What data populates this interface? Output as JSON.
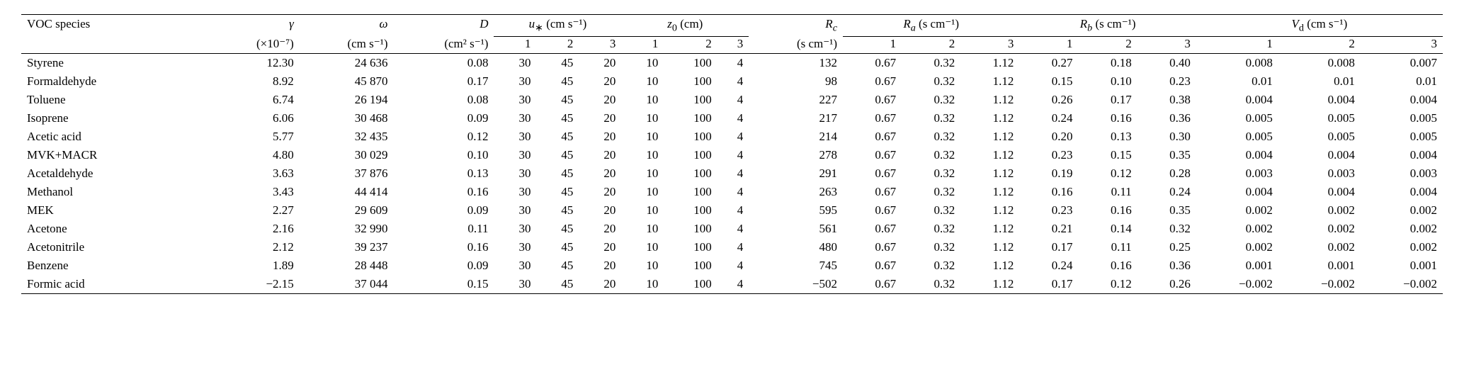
{
  "table": {
    "type": "table",
    "background_color": "#ffffff",
    "text_color": "#000000",
    "rule_color": "#000000",
    "font_family": "Times New Roman",
    "font_size_pt": 17,
    "header": {
      "voc_species": "VOC species",
      "gamma": "γ",
      "gamma_unit": "(×10⁻⁷)",
      "omega": "ω",
      "omega_unit": "(cm s⁻¹)",
      "D": "D",
      "D_unit": "(cm² s⁻¹)",
      "u_star": "u∗ (cm s⁻¹)",
      "z0": "z₀ (cm)",
      "Rc": "R_c",
      "Rc_unit": "(s cm⁻¹)",
      "Ra": "Rₐ (s cm⁻¹)",
      "Rb": "R_b (s cm⁻¹)",
      "Vd": "V_d (cm s⁻¹)",
      "sub1": "1",
      "sub2": "2",
      "sub3": "3"
    },
    "rows": [
      {
        "species": "Styrene",
        "gamma": "12.30",
        "omega": "24 636",
        "D": "0.08",
        "u1": "30",
        "u2": "45",
        "u3": "20",
        "z1": "10",
        "z2": "100",
        "z3": "4",
        "Rc": "132",
        "Ra1": "0.67",
        "Ra2": "0.32",
        "Ra3": "1.12",
        "Rb1": "0.27",
        "Rb2": "0.18",
        "Rb3": "0.40",
        "Vd1": "0.008",
        "Vd2": "0.008",
        "Vd3": "0.007"
      },
      {
        "species": "Formaldehyde",
        "gamma": "8.92",
        "omega": "45 870",
        "D": "0.17",
        "u1": "30",
        "u2": "45",
        "u3": "20",
        "z1": "10",
        "z2": "100",
        "z3": "4",
        "Rc": "98",
        "Ra1": "0.67",
        "Ra2": "0.32",
        "Ra3": "1.12",
        "Rb1": "0.15",
        "Rb2": "0.10",
        "Rb3": "0.23",
        "Vd1": "0.01",
        "Vd2": "0.01",
        "Vd3": "0.01"
      },
      {
        "species": "Toluene",
        "gamma": "6.74",
        "omega": "26 194",
        "D": "0.08",
        "u1": "30",
        "u2": "45",
        "u3": "20",
        "z1": "10",
        "z2": "100",
        "z3": "4",
        "Rc": "227",
        "Ra1": "0.67",
        "Ra2": "0.32",
        "Ra3": "1.12",
        "Rb1": "0.26",
        "Rb2": "0.17",
        "Rb3": "0.38",
        "Vd1": "0.004",
        "Vd2": "0.004",
        "Vd3": "0.004"
      },
      {
        "species": "Isoprene",
        "gamma": "6.06",
        "omega": "30 468",
        "D": "0.09",
        "u1": "30",
        "u2": "45",
        "u3": "20",
        "z1": "10",
        "z2": "100",
        "z3": "4",
        "Rc": "217",
        "Ra1": "0.67",
        "Ra2": "0.32",
        "Ra3": "1.12",
        "Rb1": "0.24",
        "Rb2": "0.16",
        "Rb3": "0.36",
        "Vd1": "0.005",
        "Vd2": "0.005",
        "Vd3": "0.005"
      },
      {
        "species": "Acetic acid",
        "gamma": "5.77",
        "omega": "32 435",
        "D": "0.12",
        "u1": "30",
        "u2": "45",
        "u3": "20",
        "z1": "10",
        "z2": "100",
        "z3": "4",
        "Rc": "214",
        "Ra1": "0.67",
        "Ra2": "0.32",
        "Ra3": "1.12",
        "Rb1": "0.20",
        "Rb2": "0.13",
        "Rb3": "0.30",
        "Vd1": "0.005",
        "Vd2": "0.005",
        "Vd3": "0.005"
      },
      {
        "species": "MVK+MACR",
        "gamma": "4.80",
        "omega": "30 029",
        "D": "0.10",
        "u1": "30",
        "u2": "45",
        "u3": "20",
        "z1": "10",
        "z2": "100",
        "z3": "4",
        "Rc": "278",
        "Ra1": "0.67",
        "Ra2": "0.32",
        "Ra3": "1.12",
        "Rb1": "0.23",
        "Rb2": "0.15",
        "Rb3": "0.35",
        "Vd1": "0.004",
        "Vd2": "0.004",
        "Vd3": "0.004"
      },
      {
        "species": "Acetaldehyde",
        "gamma": "3.63",
        "omega": "37 876",
        "D": "0.13",
        "u1": "30",
        "u2": "45",
        "u3": "20",
        "z1": "10",
        "z2": "100",
        "z3": "4",
        "Rc": "291",
        "Ra1": "0.67",
        "Ra2": "0.32",
        "Ra3": "1.12",
        "Rb1": "0.19",
        "Rb2": "0.12",
        "Rb3": "0.28",
        "Vd1": "0.003",
        "Vd2": "0.003",
        "Vd3": "0.003"
      },
      {
        "species": "Methanol",
        "gamma": "3.43",
        "omega": "44 414",
        "D": "0.16",
        "u1": "30",
        "u2": "45",
        "u3": "20",
        "z1": "10",
        "z2": "100",
        "z3": "4",
        "Rc": "263",
        "Ra1": "0.67",
        "Ra2": "0.32",
        "Ra3": "1.12",
        "Rb1": "0.16",
        "Rb2": "0.11",
        "Rb3": "0.24",
        "Vd1": "0.004",
        "Vd2": "0.004",
        "Vd3": "0.004"
      },
      {
        "species": "MEK",
        "gamma": "2.27",
        "omega": "29 609",
        "D": "0.09",
        "u1": "30",
        "u2": "45",
        "u3": "20",
        "z1": "10",
        "z2": "100",
        "z3": "4",
        "Rc": "595",
        "Ra1": "0.67",
        "Ra2": "0.32",
        "Ra3": "1.12",
        "Rb1": "0.23",
        "Rb2": "0.16",
        "Rb3": "0.35",
        "Vd1": "0.002",
        "Vd2": "0.002",
        "Vd3": "0.002"
      },
      {
        "species": "Acetone",
        "gamma": "2.16",
        "omega": "32 990",
        "D": "0.11",
        "u1": "30",
        "u2": "45",
        "u3": "20",
        "z1": "10",
        "z2": "100",
        "z3": "4",
        "Rc": "561",
        "Ra1": "0.67",
        "Ra2": "0.32",
        "Ra3": "1.12",
        "Rb1": "0.21",
        "Rb2": "0.14",
        "Rb3": "0.32",
        "Vd1": "0.002",
        "Vd2": "0.002",
        "Vd3": "0.002"
      },
      {
        "species": "Acetonitrile",
        "gamma": "2.12",
        "omega": "39 237",
        "D": "0.16",
        "u1": "30",
        "u2": "45",
        "u3": "20",
        "z1": "10",
        "z2": "100",
        "z3": "4",
        "Rc": "480",
        "Ra1": "0.67",
        "Ra2": "0.32",
        "Ra3": "1.12",
        "Rb1": "0.17",
        "Rb2": "0.11",
        "Rb3": "0.25",
        "Vd1": "0.002",
        "Vd2": "0.002",
        "Vd3": "0.002"
      },
      {
        "species": "Benzene",
        "gamma": "1.89",
        "omega": "28 448",
        "D": "0.09",
        "u1": "30",
        "u2": "45",
        "u3": "20",
        "z1": "10",
        "z2": "100",
        "z3": "4",
        "Rc": "745",
        "Ra1": "0.67",
        "Ra2": "0.32",
        "Ra3": "1.12",
        "Rb1": "0.24",
        "Rb2": "0.16",
        "Rb3": "0.36",
        "Vd1": "0.001",
        "Vd2": "0.001",
        "Vd3": "0.001"
      },
      {
        "species": "Formic acid",
        "gamma": "−2.15",
        "omega": "37 044",
        "D": "0.15",
        "u1": "30",
        "u2": "45",
        "u3": "20",
        "z1": "10",
        "z2": "100",
        "z3": "4",
        "Rc": "−502",
        "Ra1": "0.67",
        "Ra2": "0.32",
        "Ra3": "1.12",
        "Rb1": "0.17",
        "Rb2": "0.12",
        "Rb3": "0.26",
        "Vd1": "−0.002",
        "Vd2": "−0.002",
        "Vd3": "−0.002"
      }
    ]
  }
}
